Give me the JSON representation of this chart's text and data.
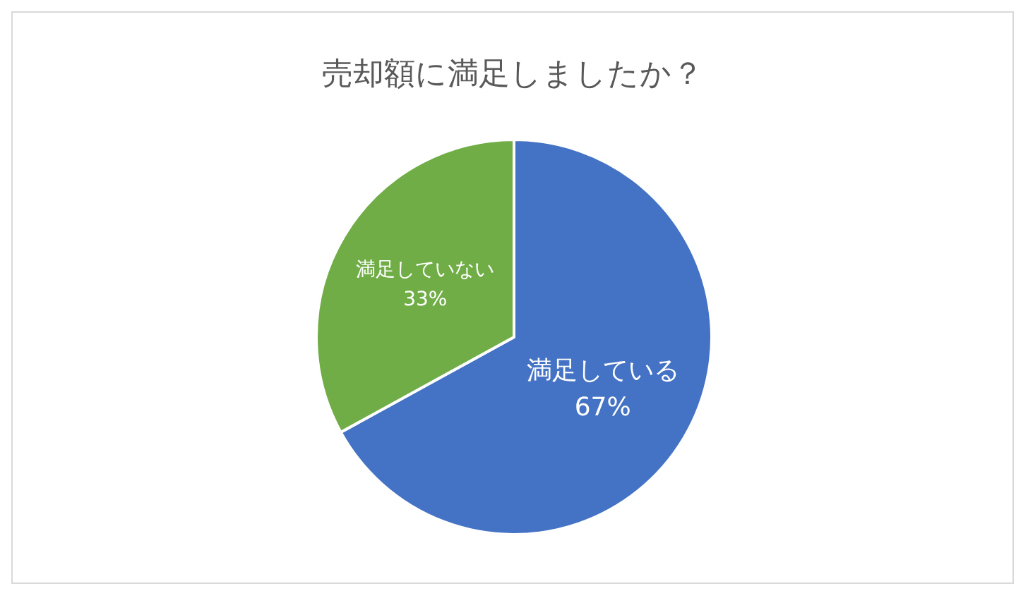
{
  "chart_data": {
    "type": "pie",
    "title": "売却額に満足しましたか？",
    "categories": [
      "満足している",
      "満足していない"
    ],
    "values": [
      67,
      33
    ],
    "value_labels": [
      "67%",
      "33%"
    ],
    "colors": [
      "#4472c4",
      "#70ad47"
    ]
  }
}
